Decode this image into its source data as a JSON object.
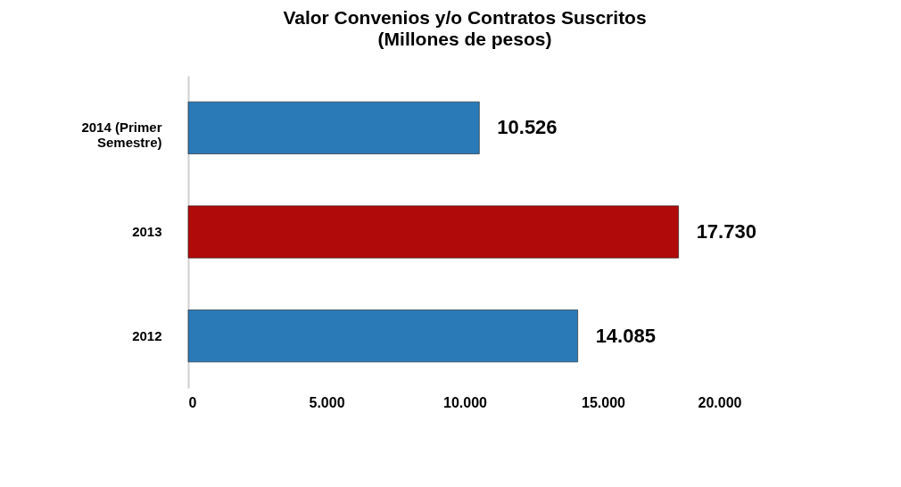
{
  "chart_data": {
    "type": "bar",
    "orientation": "horizontal",
    "title": "Valor Convenios y/o Contratos Suscritos",
    "subtitle": "(Millones de pesos)",
    "categories": [
      "2014 (Primer Semestre)",
      "2013",
      "2012"
    ],
    "values": [
      10526,
      17730,
      14085
    ],
    "colors": [
      "#2a7ab8",
      "#b00a0a",
      "#2a7ab8"
    ],
    "value_labels": [
      "10.526",
      "17.730",
      "14.085"
    ],
    "xlim": [
      0,
      20000
    ],
    "xticks": [
      0,
      {
        "value": 5000,
        "label": "5.000"
      },
      {
        "value": 10000,
        "label": "10.000"
      },
      {
        "value": 15000,
        "label": "15.000"
      },
      {
        "value": 20000,
        "label": "20.000"
      }
    ],
    "grid": false
  }
}
